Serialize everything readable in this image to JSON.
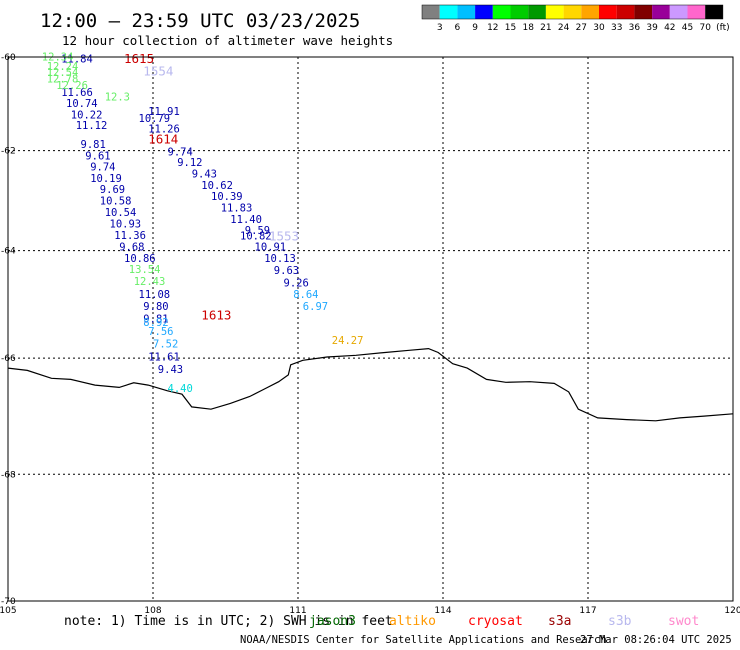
{
  "header": {
    "title": "12:00 – 23:59 UTC 03/23/2025",
    "subtitle": "12 hour collection of altimeter wave heights"
  },
  "colorbar": {
    "colors": [
      "#808080",
      "#00ffff",
      "#00bfff",
      "#0000ff",
      "#00ff00",
      "#00cc00",
      "#009900",
      "#ffff00",
      "#ffd700",
      "#ffa500",
      "#ff0000",
      "#cc0000",
      "#800000",
      "#990099",
      "#cc99ff",
      "#ff66cc",
      "#000000"
    ],
    "labels": [
      "3",
      "6",
      "9",
      "12",
      "15",
      "18",
      "21",
      "24",
      "27",
      "30",
      "33",
      "36",
      "39",
      "42",
      "45",
      "70",
      "(ft)"
    ]
  },
  "map": {
    "lon_range": [
      105,
      120
    ],
    "lat_range": [
      -70,
      -60
    ],
    "lon_ticks": [
      "105",
      "108",
      "111",
      "114",
      "117",
      "120"
    ],
    "lat_ticks": [
      "-60",
      "-62",
      "-64",
      "-66",
      "-68",
      "-70"
    ],
    "grid": true,
    "coastline_lonlat": [
      [
        105.0,
        -66.18
      ],
      [
        105.4,
        -66.22
      ],
      [
        105.9,
        -66.36
      ],
      [
        106.3,
        -66.38
      ],
      [
        106.8,
        -66.48
      ],
      [
        107.3,
        -66.52
      ],
      [
        107.6,
        -66.44
      ],
      [
        107.9,
        -66.48
      ],
      [
        108.3,
        -66.58
      ],
      [
        108.6,
        -66.64
      ],
      [
        108.8,
        -66.86
      ],
      [
        109.2,
        -66.9
      ],
      [
        109.6,
        -66.8
      ],
      [
        110.0,
        -66.68
      ],
      [
        110.3,
        -66.55
      ],
      [
        110.6,
        -66.42
      ],
      [
        110.8,
        -66.3
      ],
      [
        110.85,
        -66.12
      ],
      [
        111.1,
        -66.04
      ],
      [
        111.6,
        -65.98
      ],
      [
        112.2,
        -65.95
      ],
      [
        112.8,
        -65.9
      ],
      [
        113.3,
        -65.86
      ],
      [
        113.7,
        -65.83
      ],
      [
        113.9,
        -65.9
      ],
      [
        114.2,
        -66.1
      ],
      [
        114.5,
        -66.18
      ],
      [
        114.9,
        -66.38
      ],
      [
        115.3,
        -66.43
      ],
      [
        115.8,
        -66.42
      ],
      [
        116.3,
        -66.45
      ],
      [
        116.6,
        -66.6
      ],
      [
        116.8,
        -66.9
      ],
      [
        117.2,
        -67.05
      ],
      [
        117.8,
        -67.08
      ],
      [
        118.4,
        -67.1
      ],
      [
        118.9,
        -67.05
      ],
      [
        119.4,
        -67.02
      ],
      [
        120.0,
        -66.98
      ]
    ]
  },
  "observations": [
    {
      "label": "11.84",
      "lon": 106.1,
      "lat": -60.12,
      "color": "#0000aa"
    },
    {
      "label": "11.91",
      "lon": 107.9,
      "lat": -61.25,
      "color": "#0000aa"
    },
    {
      "label": "10.74",
      "lon": 106.2,
      "lat": -61.08,
      "color": "#0000aa"
    },
    {
      "label": "10.22",
      "lon": 106.3,
      "lat": -61.33,
      "color": "#0000aa"
    },
    {
      "label": "10.79",
      "lon": 107.7,
      "lat": -61.4,
      "color": "#0000aa"
    },
    {
      "label": "11.12",
      "lon": 106.4,
      "lat": -61.55,
      "color": "#0000aa"
    },
    {
      "label": "11.26",
      "lon": 107.9,
      "lat": -61.62,
      "color": "#0000aa"
    },
    {
      "label": "11.66",
      "lon": 106.1,
      "lat": -60.85,
      "color": "#0000aa"
    },
    {
      "label": "9.81",
      "lon": 106.5,
      "lat": -61.95,
      "color": "#0000aa"
    },
    {
      "label": "9.61",
      "lon": 106.6,
      "lat": -62.18,
      "color": "#0000aa"
    },
    {
      "label": "9.74",
      "lon": 108.3,
      "lat": -62.1,
      "color": "#0000aa"
    },
    {
      "label": "9.74",
      "lon": 106.7,
      "lat": -62.41,
      "color": "#0000aa"
    },
    {
      "label": "9.12",
      "lon": 108.5,
      "lat": -62.32,
      "color": "#0000aa"
    },
    {
      "label": "10.19",
      "lon": 106.7,
      "lat": -62.64,
      "color": "#0000aa"
    },
    {
      "label": "9.43",
      "lon": 108.8,
      "lat": -62.55,
      "color": "#0000aa"
    },
    {
      "label": "9.69",
      "lon": 106.9,
      "lat": -62.86,
      "color": "#0000aa"
    },
    {
      "label": "10.62",
      "lon": 109.0,
      "lat": -62.78,
      "color": "#0000aa"
    },
    {
      "label": "10.58",
      "lon": 106.9,
      "lat": -63.09,
      "color": "#0000aa"
    },
    {
      "label": "10.39",
      "lon": 109.2,
      "lat": -63.0,
      "color": "#0000aa"
    },
    {
      "label": "10.54",
      "lon": 107.0,
      "lat": -63.32,
      "color": "#0000aa"
    },
    {
      "label": "11.83",
      "lon": 109.4,
      "lat": -63.23,
      "color": "#0000aa"
    },
    {
      "label": "10.93",
      "lon": 107.1,
      "lat": -63.55,
      "color": "#0000aa"
    },
    {
      "label": "11.40",
      "lon": 109.6,
      "lat": -63.46,
      "color": "#0000aa"
    },
    {
      "label": "11.36",
      "lon": 107.2,
      "lat": -63.77,
      "color": "#0000aa"
    },
    {
      "label": "9.59",
      "lon": 109.9,
      "lat": -63.68,
      "color": "#0000aa"
    },
    {
      "label": "10.82",
      "lon": 109.8,
      "lat": -63.78,
      "color": "#0000aa"
    },
    {
      "label": "9.68",
      "lon": 107.3,
      "lat": -64.0,
      "color": "#0000aa"
    },
    {
      "label": "10.91",
      "lon": 110.1,
      "lat": -64.0,
      "color": "#0000aa"
    },
    {
      "label": "10.86",
      "lon": 107.4,
      "lat": -64.22,
      "color": "#0000aa"
    },
    {
      "label": "10.13",
      "lon": 110.3,
      "lat": -64.22,
      "color": "#0000aa"
    },
    {
      "label": "13.54",
      "lon": 107.5,
      "lat": -64.43,
      "color": "#66ee66"
    },
    {
      "label": "9.63",
      "lon": 110.5,
      "lat": -64.45,
      "color": "#0000aa"
    },
    {
      "label": "12.43",
      "lon": 107.6,
      "lat": -64.66,
      "color": "#66ee66"
    },
    {
      "label": "9.26",
      "lon": 110.7,
      "lat": -64.68,
      "color": "#0000aa"
    },
    {
      "label": "11.08",
      "lon": 107.7,
      "lat": -64.9,
      "color": "#0000aa"
    },
    {
      "label": "8.64",
      "lon": 110.9,
      "lat": -64.9,
      "color": "#1fa8ff"
    },
    {
      "label": "9.80",
      "lon": 107.8,
      "lat": -65.12,
      "color": "#0000aa"
    },
    {
      "label": "6.97",
      "lon": 111.1,
      "lat": -65.12,
      "color": "#1fa8ff"
    },
    {
      "label": "9.81",
      "lon": 107.8,
      "lat": -65.35,
      "color": "#0000aa"
    },
    {
      "label": "8.92",
      "lon": 107.8,
      "lat": -65.42,
      "color": "#1fa8ff"
    },
    {
      "label": "7.56",
      "lon": 107.9,
      "lat": -65.58,
      "color": "#1fa8ff"
    },
    {
      "label": "7.52",
      "lon": 108.0,
      "lat": -65.81,
      "color": "#1fa8ff"
    },
    {
      "label": "11.61",
      "lon": 107.9,
      "lat": -66.04,
      "color": "#0000aa"
    },
    {
      "label": "9.43",
      "lon": 108.1,
      "lat": -66.27,
      "color": "#0000aa"
    },
    {
      "label": "4.40",
      "lon": 108.3,
      "lat": -66.6,
      "color": "#00d8d8"
    },
    {
      "label": "24.27",
      "lon": 111.7,
      "lat": -65.75,
      "color": "#e6a800"
    },
    {
      "label": "12.34",
      "lon": 105.7,
      "lat": -60.08,
      "color": "#66ee66"
    },
    {
      "label": "12.24",
      "lon": 105.8,
      "lat": -60.28,
      "color": "#66ee66"
    },
    {
      "label": "12.54",
      "lon": 105.8,
      "lat": -60.42,
      "color": "#66ee66"
    },
    {
      "label": "12.78",
      "lon": 105.8,
      "lat": -60.56,
      "color": "#66ee66"
    },
    {
      "label": "12.26",
      "lon": 106.0,
      "lat": -60.7,
      "color": "#66ee66"
    },
    {
      "label": "12.3",
      "lon": 107.0,
      "lat": -60.95,
      "color": "#66ee66"
    }
  ],
  "pass_labels": [
    {
      "label": "1615",
      "lon": 107.4,
      "lat": -60.13,
      "color": "#cc0000"
    },
    {
      "label": "1614",
      "lon": 107.9,
      "lat": -61.85,
      "color": "#cc0000"
    },
    {
      "label": "1613",
      "lon": 109.0,
      "lat": -65.3,
      "color": "#cc0000"
    },
    {
      "label": "1554",
      "lon": 107.8,
      "lat": -60.4,
      "color": "#b8b8ee"
    },
    {
      "label": "1553",
      "lon": 110.4,
      "lat": -63.8,
      "color": "#b8b8ee"
    }
  ],
  "footer": {
    "note": "note: 1) Time is in UTC; 2) SWH is in feet",
    "satellites": [
      {
        "name": "jason3",
        "color": "#006600"
      },
      {
        "name": "altiko",
        "color": "#ff9900"
      },
      {
        "name": "cryosat",
        "color": "#ff0000"
      },
      {
        "name": "s3a",
        "color": "#990000"
      },
      {
        "name": "s3b",
        "color": "#b8b8ee"
      },
      {
        "name": "swot",
        "color": "#ff88cc"
      }
    ],
    "credit": "NOAA/NESDIS Center for Satellite Applications and Research",
    "timestamp": "27 Mar 08:26:04 UTC 2025"
  }
}
